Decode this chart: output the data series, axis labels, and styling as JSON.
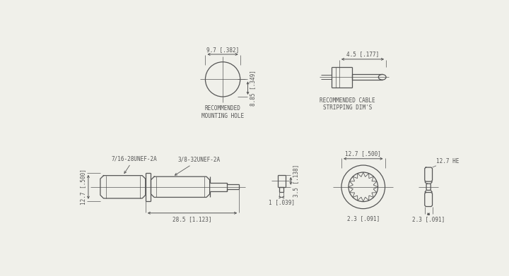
{
  "bg_color": "#f0f0ea",
  "line_color": "#555555",
  "lw": 0.9,
  "labels": {
    "mounting_hole": "RECOMMENDED\nMOUNTING HOLE",
    "cable_strip": "RECOMMENDED CABLE\nSTRIPPING DIM'S",
    "thread1": "7/16-28UNEF-2A",
    "thread2": "3/8-32UNEF-2A",
    "dim_9p7": "9.7 [.382]",
    "dim_8p85": "8.85 [.349]",
    "dim_4p5": "4.5 [.177]",
    "dim_12p7_top": "12.7 [.500]",
    "dim_12p7_side": "12.7 HE",
    "dim_12p7_left": "12.7 [.500]",
    "dim_28p5": "28.5 [1.123]",
    "dim_3p5": "3.5 [.138]",
    "dim_1": "1 [.039]",
    "dim_2p3": "2.3 [.091]"
  }
}
